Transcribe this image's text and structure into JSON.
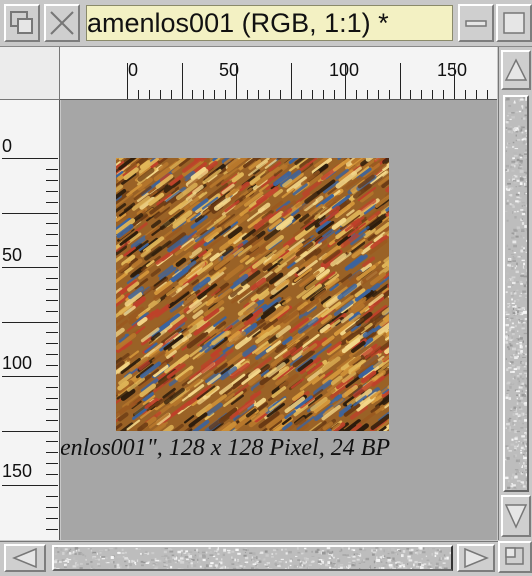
{
  "window": {
    "title": "amenlos001 (RGB, 1:1) *"
  },
  "rulers": {
    "horizontal_labels": [
      "0",
      "50",
      "100",
      "150"
    ],
    "vertical_labels": [
      "0",
      "50",
      "100",
      "150"
    ]
  },
  "canvas": {
    "background_color": "#a6a6a6",
    "caption": "enlos001\", 128 x 128 Pixel, 24 BP",
    "image_palette": [
      "#b8782c",
      "#e2b85a",
      "#f4d88a",
      "#6a3a14",
      "#c0402a",
      "#3a64a0",
      "#9a5a20",
      "#d89a3c",
      "#2c1c0c"
    ]
  },
  "icons": {
    "depth": "depth-gadget-icon",
    "close": "close-cross-icon",
    "iconify": "iconify-minus-icon",
    "zoom": "zoom-square-icon",
    "up": "triangle-up-icon",
    "down": "triangle-down-icon",
    "left": "triangle-left-icon",
    "right": "triangle-right-icon",
    "size": "size-gadget-icon"
  }
}
